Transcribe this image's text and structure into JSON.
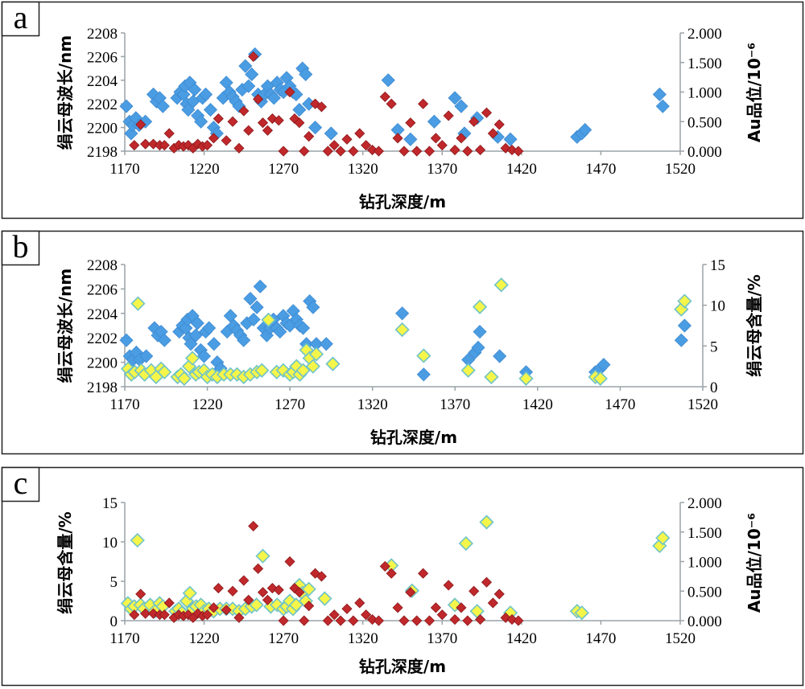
{
  "colors": {
    "blue": "#4a9de3",
    "red": "#c0282b",
    "yellow": "#f5f54a",
    "yellow_edge": "#6fc3c8"
  },
  "chart_data": [
    {
      "panel": "a",
      "type": "scatter",
      "xlabel": "钻孔深度/m",
      "ylabel_left": "绢云母波长/nm",
      "ylabel_right": "Au品位/10⁻⁶",
      "xlim": [
        1170,
        1520
      ],
      "xticks": [
        "1170",
        "1220",
        "1270",
        "1320",
        "1370",
        "1420",
        "1470",
        "1520"
      ],
      "ylim_left": [
        2198,
        2208
      ],
      "yticks_left": [
        "2198",
        "2200",
        "2202",
        "2204",
        "2206",
        "2208"
      ],
      "ylim_right": [
        0,
        2
      ],
      "yticks_right": [
        "0.000",
        "0.500",
        "1.000",
        "1.500",
        "2.000"
      ],
      "grid": false,
      "series": [
        {
          "axis": "left",
          "marker": "diamond",
          "color": "#4a9de3",
          "x": [
            1171,
            1173,
            1174,
            1175,
            1177,
            1179,
            1183,
            1188,
            1190,
            1192,
            1194,
            1203,
            1205,
            1207,
            1208,
            1209,
            1210,
            1211,
            1213,
            1214,
            1216,
            1218,
            1219,
            1221,
            1224,
            1226,
            1228,
            1232,
            1234,
            1236,
            1238,
            1240,
            1242,
            1244,
            1246,
            1248,
            1250,
            1252,
            1254,
            1256,
            1258,
            1260,
            1262,
            1264,
            1266,
            1268,
            1270,
            1272,
            1274,
            1276,
            1278,
            1280,
            1282,
            1284,
            1286,
            1290,
            1300,
            1336,
            1342,
            1350,
            1365,
            1378,
            1382,
            1384,
            1392,
            1405,
            1413,
            1455,
            1458,
            1460,
            1507,
            1509
          ],
          "y": [
            2201.8,
            2200.5,
            2199.5,
            2200.2,
            2200.8,
            2200.2,
            2200.5,
            2202.8,
            2202.2,
            2202.5,
            2201.8,
            2202.5,
            2203.0,
            2202.8,
            2203.5,
            2202.0,
            2201.5,
            2203.8,
            2202.2,
            2203.2,
            2201.0,
            2200.5,
            2202.5,
            2202.8,
            2201.5,
            2200.0,
            2199.5,
            2202.5,
            2203.8,
            2203.0,
            2202.6,
            2202.2,
            2201.8,
            2203.2,
            2205.2,
            2203.5,
            2204.5,
            2206.2,
            2202.8,
            2202.2,
            2202.8,
            2203.5,
            2202.8,
            2202.5,
            2203.8,
            2203.2,
            2203.0,
            2204.2,
            2203.5,
            2203.0,
            2202.8,
            2201.5,
            2205.0,
            2204.5,
            2202.0,
            2200.0,
            2199.5,
            2204.0,
            2199.8,
            2199.0,
            2200.5,
            2202.5,
            2201.8,
            2199.5,
            2200.8,
            2199.2,
            2199.0,
            2199.2,
            2199.5,
            2199.8,
            2202.8,
            2201.8
          ]
        },
        {
          "axis": "right",
          "marker": "diamond",
          "color": "#c0282b",
          "x": [
            1176,
            1180,
            1183,
            1188,
            1192,
            1195,
            1198,
            1201,
            1204,
            1207,
            1210,
            1213,
            1216,
            1219,
            1222,
            1226,
            1229,
            1234,
            1238,
            1242,
            1245,
            1248,
            1251,
            1254,
            1257,
            1260,
            1263,
            1267,
            1270,
            1274,
            1277,
            1280,
            1283,
            1286,
            1290,
            1294,
            1298,
            1302,
            1306,
            1310,
            1314,
            1318,
            1322,
            1326,
            1330,
            1334,
            1338,
            1342,
            1346,
            1350,
            1354,
            1358,
            1362,
            1366,
            1370,
            1374,
            1378,
            1382,
            1386,
            1390,
            1394,
            1398,
            1402,
            1406,
            1410,
            1414,
            1418
          ],
          "y": [
            0.1,
            0.45,
            0.12,
            0.12,
            0.1,
            0.1,
            0.3,
            0.05,
            0.1,
            0.08,
            0.1,
            0.05,
            0.12,
            0.08,
            0.1,
            0.22,
            0.55,
            0.18,
            0.5,
            0.05,
            0.68,
            0.35,
            1.6,
            0.88,
            0.48,
            0.35,
            0.55,
            0.52,
            0.0,
            1.0,
            0.55,
            0.48,
            0.0,
            0.25,
            0.8,
            0.75,
            0.0,
            0.1,
            0.0,
            0.2,
            0.0,
            0.3,
            0.1,
            0.02,
            0.0,
            0.92,
            0.8,
            0.22,
            0.0,
            0.48,
            0.0,
            0.8,
            0.0,
            0.22,
            0.1,
            0.6,
            0.02,
            0.22,
            0.0,
            0.5,
            0.02,
            0.65,
            0.3,
            0.45,
            0.05,
            0.02,
            0.0
          ]
        }
      ]
    },
    {
      "panel": "b",
      "type": "scatter",
      "xlabel": "钻孔深度/m",
      "ylabel_left": "绢云母波长/nm",
      "ylabel_right": "绢云母含量/%",
      "xlim": [
        1170,
        1520
      ],
      "xticks": [
        "1170",
        "1220",
        "1270",
        "1320",
        "1370",
        "1420",
        "1470",
        "1520"
      ],
      "ylim_left": [
        2198,
        2208
      ],
      "yticks_left": [
        "2198",
        "2200",
        "2202",
        "2204",
        "2206",
        "2208"
      ],
      "ylim_right": [
        0,
        15
      ],
      "yticks_right": [
        "0",
        "5",
        "10",
        "15"
      ],
      "grid": false,
      "series": [
        {
          "axis": "left",
          "marker": "diamond",
          "color": "#4a9de3",
          "x": [
            1171,
            1173,
            1174,
            1175,
            1177,
            1179,
            1183,
            1188,
            1190,
            1192,
            1194,
            1203,
            1205,
            1207,
            1208,
            1209,
            1210,
            1211,
            1213,
            1214,
            1216,
            1218,
            1219,
            1221,
            1224,
            1226,
            1228,
            1232,
            1234,
            1236,
            1238,
            1240,
            1242,
            1244,
            1246,
            1248,
            1250,
            1252,
            1254,
            1256,
            1258,
            1260,
            1262,
            1264,
            1266,
            1268,
            1270,
            1272,
            1274,
            1276,
            1278,
            1280,
            1282,
            1284,
            1286,
            1292,
            1338,
            1351,
            1378,
            1382,
            1384,
            1385,
            1397,
            1413,
            1455,
            1458,
            1460,
            1507,
            1509
          ],
          "y": [
            2201.8,
            2200.5,
            2199.5,
            2200.2,
            2200.8,
            2200.2,
            2200.5,
            2202.8,
            2202.2,
            2202.5,
            2201.8,
            2202.5,
            2203.0,
            2202.8,
            2203.5,
            2202.0,
            2201.5,
            2203.8,
            2202.2,
            2203.2,
            2201.0,
            2200.5,
            2202.5,
            2202.8,
            2201.5,
            2200.0,
            2199.5,
            2202.5,
            2203.8,
            2203.0,
            2202.6,
            2202.2,
            2201.8,
            2203.2,
            2205.2,
            2203.5,
            2204.5,
            2206.2,
            2202.8,
            2202.2,
            2202.8,
            2203.5,
            2202.8,
            2202.5,
            2203.8,
            2203.2,
            2203.0,
            2204.2,
            2203.5,
            2203.0,
            2202.8,
            2201.5,
            2205.0,
            2204.5,
            2201.5,
            2201.5,
            2204.0,
            2199.0,
            2200.2,
            2200.8,
            2201.2,
            2202.5,
            2200.5,
            2199.2,
            2199.2,
            2199.5,
            2199.8,
            2201.8,
            2203.0
          ]
        },
        {
          "axis": "right",
          "marker": "diamond",
          "color": "#f5f54a",
          "x": [
            1172,
            1174,
            1176,
            1178,
            1180,
            1182,
            1186,
            1189,
            1192,
            1194,
            1202,
            1204,
            1206,
            1209,
            1211,
            1213,
            1215,
            1218,
            1220,
            1223,
            1226,
            1230,
            1234,
            1238,
            1242,
            1246,
            1250,
            1253,
            1257,
            1262,
            1266,
            1270,
            1272,
            1274,
            1276,
            1278,
            1280,
            1282,
            1284,
            1286,
            1296,
            1338,
            1351,
            1378,
            1385,
            1392,
            1398,
            1413,
            1455,
            1458,
            1507,
            1509
          ],
          "y": [
            2.2,
            1.5,
            1.8,
            10.2,
            2.0,
            1.5,
            2.0,
            1.2,
            2.2,
            1.8,
            1.2,
            1.5,
            1.0,
            2.5,
            3.5,
            1.5,
            1.8,
            2.0,
            1.2,
            1.5,
            1.2,
            1.5,
            1.5,
            1.5,
            1.2,
            1.5,
            1.8,
            2.0,
            8.2,
            1.8,
            2.0,
            1.5,
            1.8,
            2.5,
            1.5,
            2.0,
            4.5,
            3.5,
            2.5,
            4.0,
            2.8,
            7.0,
            3.8,
            2.0,
            9.8,
            1.2,
            12.5,
            1.0,
            1.2,
            1.0,
            9.5,
            10.5
          ]
        }
      ]
    },
    {
      "panel": "c",
      "type": "scatter",
      "xlabel": "钻孔深度/m",
      "ylabel_left": "绢云母含量/%",
      "ylabel_right": "Au品位/10⁻⁶",
      "xlim": [
        1170,
        1520
      ],
      "xticks": [
        "1170",
        "1220",
        "1270",
        "1320",
        "1370",
        "1420",
        "1470",
        "1520"
      ],
      "ylim_left": [
        0,
        15
      ],
      "yticks_left": [
        "0",
        "5",
        "10",
        "15"
      ],
      "ylim_right": [
        0,
        2
      ],
      "yticks_right": [
        "0.000",
        "0.500",
        "1.000",
        "1.500",
        "2.000"
      ],
      "grid": false,
      "series": [
        {
          "axis": "left",
          "marker": "diamond",
          "color": "#f5f54a",
          "x": [
            1172,
            1174,
            1176,
            1178,
            1180,
            1182,
            1186,
            1189,
            1192,
            1194,
            1202,
            1204,
            1206,
            1209,
            1211,
            1213,
            1215,
            1218,
            1220,
            1223,
            1226,
            1230,
            1234,
            1238,
            1242,
            1246,
            1250,
            1253,
            1257,
            1262,
            1266,
            1270,
            1272,
            1274,
            1276,
            1278,
            1280,
            1282,
            1284,
            1286,
            1296,
            1338,
            1351,
            1378,
            1385,
            1392,
            1398,
            1413,
            1455,
            1458,
            1507,
            1509
          ],
          "y": [
            2.2,
            1.5,
            1.8,
            10.2,
            2.0,
            1.5,
            2.0,
            1.2,
            2.2,
            1.8,
            1.2,
            1.5,
            1.0,
            2.5,
            3.5,
            1.5,
            1.8,
            2.0,
            1.2,
            1.5,
            1.2,
            1.5,
            1.5,
            1.5,
            1.2,
            1.5,
            1.8,
            2.0,
            8.2,
            1.8,
            2.0,
            1.5,
            1.8,
            2.5,
            1.5,
            2.0,
            4.5,
            3.5,
            2.5,
            4.0,
            2.8,
            7.0,
            3.8,
            2.0,
            9.8,
            1.2,
            12.5,
            1.0,
            1.2,
            1.0,
            9.5,
            10.5
          ]
        },
        {
          "axis": "right",
          "marker": "diamond",
          "color": "#c0282b",
          "x": [
            1176,
            1180,
            1183,
            1188,
            1192,
            1195,
            1198,
            1201,
            1204,
            1207,
            1210,
            1213,
            1216,
            1219,
            1222,
            1226,
            1229,
            1234,
            1238,
            1242,
            1245,
            1248,
            1251,
            1254,
            1257,
            1260,
            1263,
            1267,
            1270,
            1274,
            1277,
            1280,
            1283,
            1286,
            1290,
            1294,
            1298,
            1302,
            1306,
            1310,
            1314,
            1318,
            1322,
            1326,
            1330,
            1334,
            1338,
            1342,
            1346,
            1350,
            1354,
            1358,
            1362,
            1366,
            1370,
            1374,
            1378,
            1382,
            1386,
            1390,
            1394,
            1398,
            1402,
            1406,
            1410,
            1414,
            1418
          ],
          "y": [
            0.1,
            0.45,
            0.12,
            0.12,
            0.1,
            0.1,
            0.3,
            0.05,
            0.1,
            0.08,
            0.1,
            0.05,
            0.12,
            0.08,
            0.1,
            0.22,
            0.55,
            0.18,
            0.5,
            0.05,
            0.68,
            0.35,
            1.6,
            0.88,
            0.48,
            0.35,
            0.55,
            0.52,
            0.0,
            1.0,
            0.55,
            0.48,
            0.0,
            0.25,
            0.8,
            0.75,
            0.0,
            0.1,
            0.0,
            0.2,
            0.0,
            0.3,
            0.1,
            0.02,
            0.0,
            0.92,
            0.8,
            0.22,
            0.0,
            0.48,
            0.0,
            0.8,
            0.0,
            0.22,
            0.1,
            0.6,
            0.02,
            0.22,
            0.0,
            0.5,
            0.02,
            0.65,
            0.3,
            0.45,
            0.05,
            0.02,
            0.0
          ]
        }
      ]
    }
  ]
}
